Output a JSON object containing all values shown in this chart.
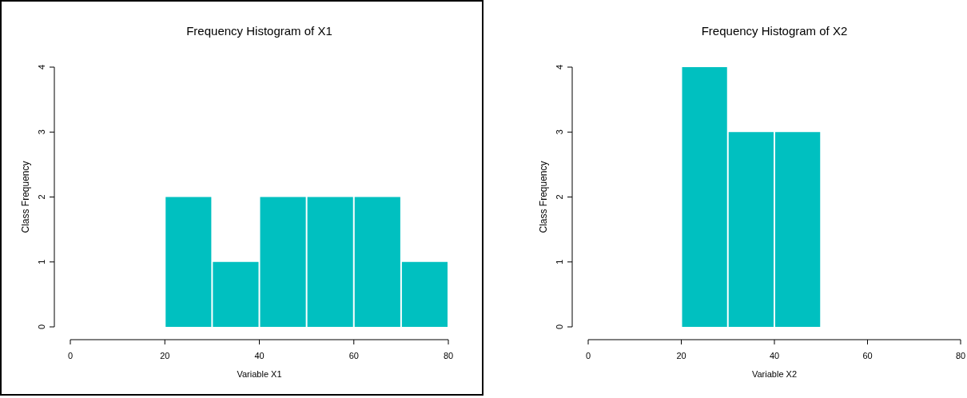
{
  "chart_data": [
    {
      "type": "histogram",
      "title": "Frequency Histogram of X1",
      "xlabel": "Variable X1",
      "ylabel": "Class Frequency",
      "bins": [
        20,
        30,
        40,
        50,
        60,
        70,
        80
      ],
      "values": [
        2,
        1,
        2,
        2,
        2,
        1
      ],
      "color": "#00c0c0",
      "xlim": [
        0,
        80
      ],
      "xticks": [
        0,
        20,
        40,
        60,
        80
      ],
      "ylim": [
        0,
        4
      ],
      "yticks": [
        0,
        1,
        2,
        3,
        4
      ],
      "grid": false
    },
    {
      "type": "histogram",
      "title": "Frequency Histogram of X2",
      "xlabel": "Variable X2",
      "ylabel": "Class Frequency",
      "bins": [
        20,
        30,
        40,
        50
      ],
      "values": [
        4,
        3,
        3
      ],
      "color": "#00c0c0",
      "xlim": [
        0,
        80
      ],
      "xticks": [
        0,
        20,
        40,
        60,
        80
      ],
      "ylim": [
        0,
        4
      ],
      "yticks": [
        0,
        1,
        2,
        3,
        4
      ],
      "grid": false
    }
  ]
}
